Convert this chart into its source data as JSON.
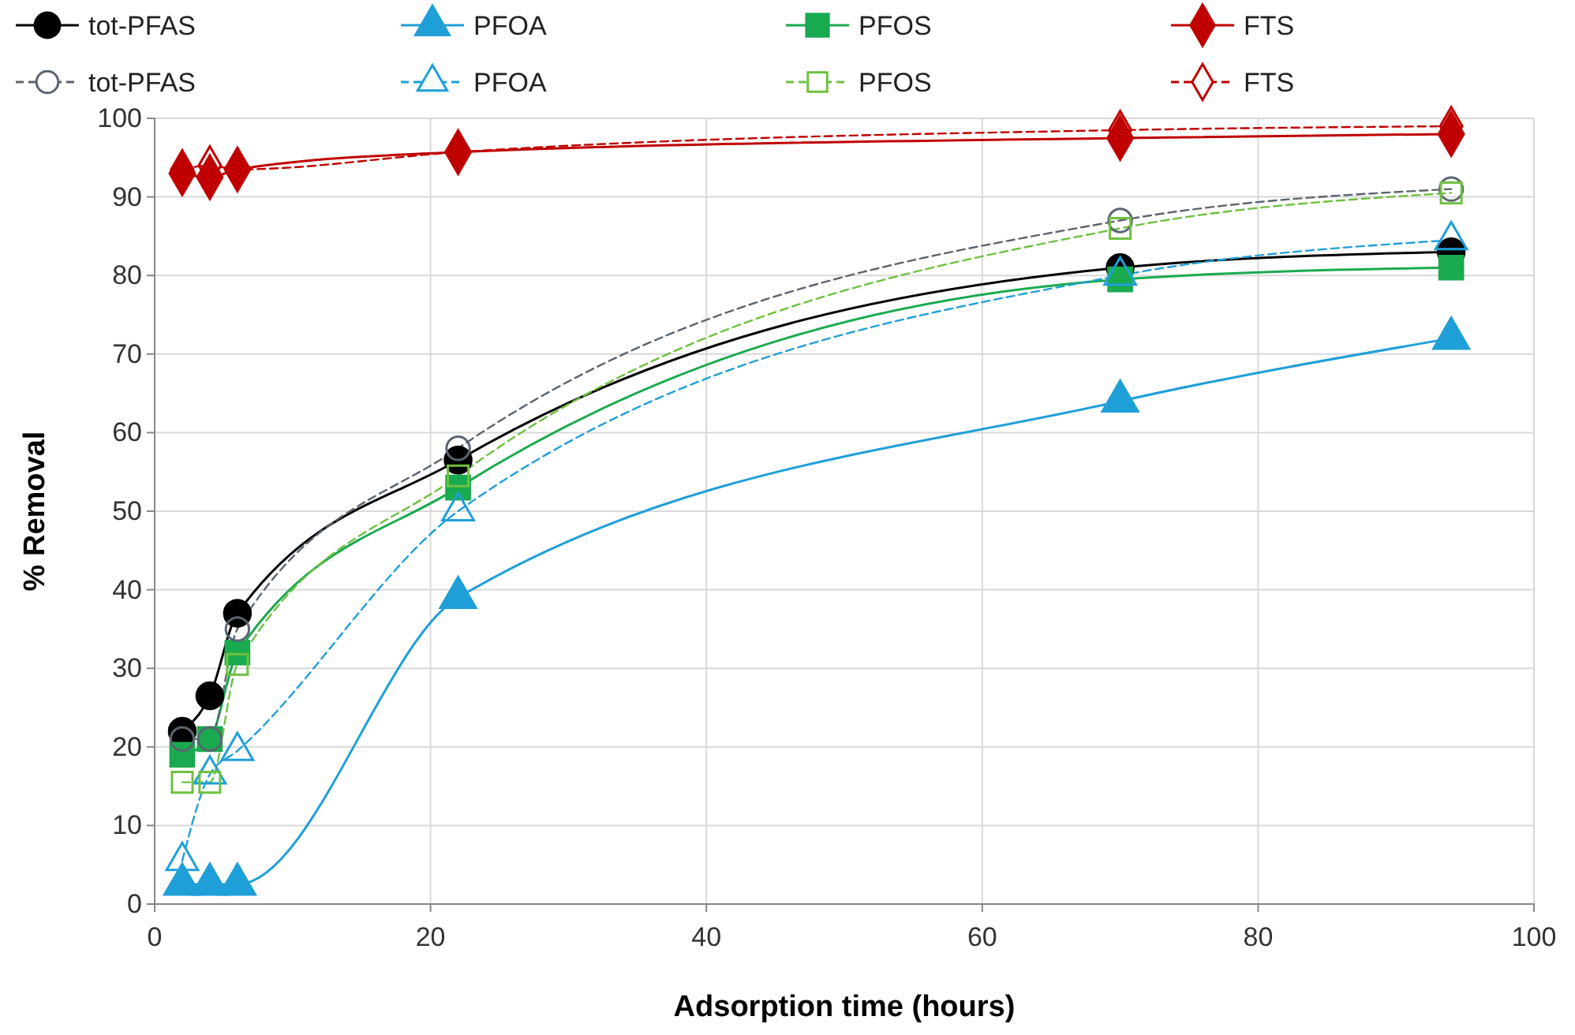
{
  "chart_data": {
    "type": "line",
    "xlabel": "Adsorption time (hours)",
    "ylabel": "% Removal",
    "xlim": [
      0,
      100
    ],
    "xticks": [
      0,
      20,
      40,
      60,
      80,
      100
    ],
    "ylim": [
      0,
      100
    ],
    "yticks": [
      0,
      10,
      20,
      30,
      40,
      50,
      60,
      70,
      80,
      90,
      100
    ],
    "grid": true,
    "legend": "top",
    "x": [
      2,
      4,
      6,
      22,
      70,
      94
    ],
    "series": [
      {
        "name": "tot-PFAS",
        "color": "#000000",
        "marker": "circle",
        "line_style": "solid",
        "values": [
          22,
          26.5,
          37,
          56.5,
          81,
          83
        ]
      },
      {
        "name": "PFOA",
        "color": "#1f9fd8",
        "marker": "triangle",
        "line_style": "solid",
        "values": [
          2.5,
          2.5,
          2.5,
          39,
          64,
          72
        ]
      },
      {
        "name": "PFOS",
        "color": "#1aaa50",
        "marker": "square",
        "line_style": "solid",
        "values": [
          19,
          21,
          32,
          53,
          79.5,
          81
        ]
      },
      {
        "name": "FTS",
        "color": "#c00000",
        "marker": "diamond",
        "line_style": "solid",
        "values": [
          93,
          92.5,
          93.5,
          95.7,
          97.5,
          98
        ]
      },
      {
        "name": "tot-PFAS",
        "color": "#5a6570",
        "marker": "circle",
        "line_style": "dashed",
        "values": [
          21,
          21,
          35,
          58,
          87,
          91
        ]
      },
      {
        "name": "PFOA",
        "color": "#1f9fd8",
        "marker": "triangle",
        "line_style": "dashed",
        "values": [
          5.5,
          16.5,
          19.5,
          50,
          80,
          84.5
        ]
      },
      {
        "name": "PFOS",
        "color": "#70c040",
        "marker": "square",
        "line_style": "dashed",
        "values": [
          15.5,
          15.5,
          30.5,
          54.5,
          86,
          90.5
        ]
      },
      {
        "name": "FTS",
        "color": "#c00000",
        "marker": "diamond",
        "line_style": "dashed",
        "values": [
          93.5,
          94,
          93.5,
          95.7,
          98.5,
          99
        ]
      }
    ]
  }
}
